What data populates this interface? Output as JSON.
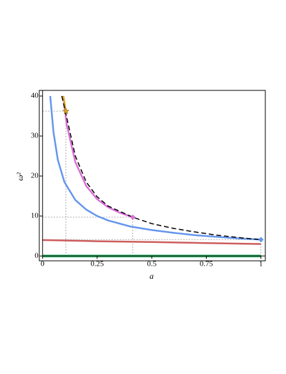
{
  "chart_data": {
    "type": "line",
    "x_label": "a",
    "y_label": "ω²",
    "xlim": [
      -0.015,
      1.02
    ],
    "ylim": [
      -1.2,
      41.4
    ],
    "xticks": [
      0,
      0.25,
      0.5,
      0.75,
      1
    ],
    "yticks": [
      0,
      10,
      20,
      30,
      40
    ],
    "series": [
      {
        "color": "#3cb371",
        "width": 4,
        "dash": false,
        "x": [
          0,
          1
        ],
        "values": [
          0,
          0
        ]
      },
      {
        "color": "#cd5c5c",
        "width": 2.5,
        "dash": false,
        "x": [
          0,
          0.25,
          0.5,
          0.75,
          1
        ],
        "values": [
          4.0,
          3.7,
          3.5,
          3.25,
          3.0
        ]
      },
      {
        "color": "#6495ed",
        "width": 2.5,
        "dash": false,
        "x": [
          0.035,
          0.05,
          0.07,
          0.1,
          0.15,
          0.2,
          0.25,
          0.3,
          0.4,
          0.5,
          0.6,
          0.7,
          0.8,
          0.9,
          1
        ],
        "values": [
          40,
          31,
          24,
          18.5,
          14,
          11.6,
          10,
          8.9,
          7.4,
          6.5,
          5.8,
          5.2,
          4.8,
          4.4,
          4.1
        ]
      },
      {
        "color": "#da70d6",
        "width": 2.5,
        "dash": false,
        "x": [
          0.095,
          0.11,
          0.15,
          0.2,
          0.25,
          0.3,
          0.35,
          0.413
        ],
        "values": [
          40,
          33,
          23.5,
          17.5,
          14.2,
          12.2,
          10.9,
          9.7
        ]
      },
      {
        "color": "#daa520",
        "width": 2.5,
        "dash": false,
        "x": [
          0.095,
          0.1,
          0.107
        ],
        "values": [
          40,
          38.5,
          36.2
        ]
      },
      {
        "color": "#000000",
        "width": 1.5,
        "dash": true,
        "x": [
          0.088,
          0.107,
          0.15,
          0.2,
          0.25,
          0.3,
          0.413,
          0.5,
          0.6,
          0.7,
          0.8,
          0.9,
          1
        ],
        "values": [
          40,
          35.5,
          25,
          18.5,
          14.8,
          12.5,
          9.7,
          8.1,
          6.9,
          6.0,
          5.2,
          4.6,
          4.1
        ]
      }
    ],
    "markers": [
      {
        "x": 0.107,
        "y": 36.2,
        "color": "#daa520",
        "shape": "star"
      },
      {
        "x": 0.413,
        "y": 9.7,
        "color": "#da70d6",
        "shape": "diamond"
      },
      {
        "x": 1,
        "y": 4.1,
        "color": "#6495ed",
        "shape": "diamond"
      }
    ]
  }
}
